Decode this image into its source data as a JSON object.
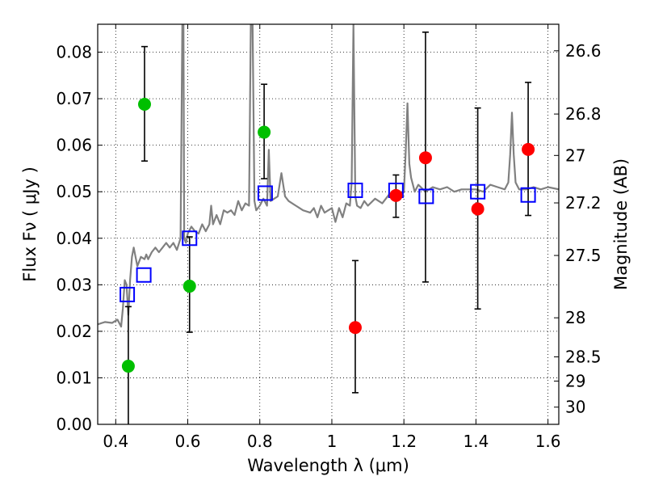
{
  "chart_data": {
    "type": "scatter",
    "title": "",
    "xlabel": "Wavelength  λ (μm)",
    "ylabel": "Flux  Fν  ( μJy )",
    "y2label": "Magnitude (AB)",
    "xlim": [
      0.35,
      1.63
    ],
    "ylim": [
      0.0,
      0.086
    ],
    "grid": true,
    "xticks": [
      0.4,
      0.6,
      0.8,
      1.0,
      1.2,
      1.4,
      1.6
    ],
    "xtick_labels": [
      "0.4",
      "0.6",
      "0.8",
      "1",
      "1.2",
      "1.4",
      "1.6"
    ],
    "yticks": [
      0.0,
      0.01,
      0.02,
      0.03,
      0.04,
      0.05,
      0.06,
      0.07,
      0.08
    ],
    "ytick_labels": [
      "0.00",
      "0.01",
      "0.02",
      "0.03",
      "0.04",
      "0.05",
      "0.06",
      "0.07",
      "0.08"
    ],
    "magnitude_ticks": [
      {
        "flux": 0.0803,
        "label": "26.6"
      },
      {
        "flux": 0.0667,
        "label": "26.8"
      },
      {
        "flux": 0.0578,
        "label": "27"
      },
      {
        "flux": 0.0476,
        "label": "27.2"
      },
      {
        "flux": 0.0363,
        "label": "27.5"
      },
      {
        "flux": 0.0229,
        "label": "28"
      },
      {
        "flux": 0.0145,
        "label": "28.5"
      },
      {
        "flux": 0.0093,
        "label": "29"
      },
      {
        "flux": 0.0037,
        "label": "30"
      }
    ],
    "series": [
      {
        "name": "model spectrum",
        "kind": "line",
        "color": "#808080",
        "x": [
          0.35,
          0.37,
          0.39,
          0.405,
          0.415,
          0.42,
          0.425,
          0.43,
          0.435,
          0.44,
          0.445,
          0.45,
          0.46,
          0.47,
          0.48,
          0.485,
          0.49,
          0.5,
          0.51,
          0.52,
          0.53,
          0.54,
          0.55,
          0.56,
          0.57,
          0.58,
          0.585,
          0.588,
          0.59,
          0.595,
          0.6,
          0.61,
          0.62,
          0.63,
          0.64,
          0.65,
          0.66,
          0.665,
          0.67,
          0.675,
          0.68,
          0.69,
          0.7,
          0.71,
          0.72,
          0.73,
          0.74,
          0.75,
          0.76,
          0.77,
          0.775,
          0.78,
          0.785,
          0.79,
          0.8,
          0.81,
          0.82,
          0.825,
          0.83,
          0.84,
          0.85,
          0.86,
          0.87,
          0.88,
          0.9,
          0.92,
          0.94,
          0.95,
          0.96,
          0.97,
          0.98,
          0.99,
          1.0,
          1.01,
          1.02,
          1.03,
          1.04,
          1.05,
          1.055,
          1.06,
          1.065,
          1.07,
          1.08,
          1.09,
          1.1,
          1.12,
          1.14,
          1.16,
          1.18,
          1.19,
          1.2,
          1.205,
          1.21,
          1.215,
          1.22,
          1.23,
          1.24,
          1.26,
          1.28,
          1.3,
          1.32,
          1.34,
          1.36,
          1.38,
          1.4,
          1.42,
          1.44,
          1.46,
          1.48,
          1.49,
          1.495,
          1.5,
          1.505,
          1.51,
          1.52,
          1.54,
          1.56,
          1.58,
          1.6,
          1.63
        ],
        "y": [
          0.0215,
          0.022,
          0.0218,
          0.0225,
          0.021,
          0.025,
          0.031,
          0.03,
          0.0235,
          0.031,
          0.036,
          0.038,
          0.034,
          0.036,
          0.0355,
          0.0365,
          0.0355,
          0.037,
          0.038,
          0.037,
          0.038,
          0.039,
          0.038,
          0.039,
          0.0375,
          0.04,
          0.086,
          0.086,
          0.04,
          0.039,
          0.041,
          0.0425,
          0.0415,
          0.041,
          0.043,
          0.0415,
          0.043,
          0.047,
          0.043,
          0.044,
          0.045,
          0.043,
          0.046,
          0.0455,
          0.046,
          0.045,
          0.048,
          0.046,
          0.0475,
          0.047,
          0.086,
          0.086,
          0.048,
          0.046,
          0.047,
          0.0485,
          0.047,
          0.059,
          0.048,
          0.0485,
          0.049,
          0.054,
          0.049,
          0.048,
          0.047,
          0.046,
          0.0455,
          0.0465,
          0.0445,
          0.047,
          0.0455,
          0.046,
          0.0465,
          0.0435,
          0.0465,
          0.0445,
          0.0475,
          0.047,
          0.052,
          0.086,
          0.049,
          0.047,
          0.0465,
          0.048,
          0.047,
          0.0485,
          0.0475,
          0.0495,
          0.049,
          0.0495,
          0.05,
          0.0585,
          0.069,
          0.056,
          0.053,
          0.05,
          0.0515,
          0.05,
          0.051,
          0.0505,
          0.051,
          0.05,
          0.0505,
          0.0505,
          0.0505,
          0.05,
          0.0515,
          0.051,
          0.0505,
          0.052,
          0.058,
          0.067,
          0.058,
          0.052,
          0.0505,
          0.0505,
          0.051,
          0.0505,
          0.051,
          0.0505
        ]
      },
      {
        "name": "model magnitudes",
        "kind": "open-square",
        "color": "#0000ff",
        "x": [
          0.432,
          0.478,
          0.605,
          0.815,
          1.065,
          1.178,
          1.262,
          1.405,
          1.545
        ],
        "y": [
          0.0279,
          0.0321,
          0.04,
          0.0497,
          0.0503,
          0.0503,
          0.049,
          0.05,
          0.0493
        ]
      },
      {
        "name": "optical detections",
        "kind": "filled-circle",
        "color": "#00bf00",
        "x": [
          0.435,
          0.48,
          0.605,
          0.812
        ],
        "y": [
          0.0125,
          0.0688,
          0.0297,
          0.0628
        ],
        "yerr_low": [
          null,
          0.0566,
          0.0198,
          0.0528
        ],
        "yerr_high": [
          null,
          0.0812,
          0.0403,
          0.0731
        ]
      },
      {
        "name": "near-IR detections",
        "kind": "filled-circle",
        "color": "#ff0000",
        "x": [
          1.065,
          1.178,
          1.26,
          1.405,
          1.545
        ],
        "y": [
          0.0208,
          0.0492,
          0.0573,
          0.0463,
          0.0591
        ],
        "yerr_low": [
          0.0068,
          0.0445,
          0.0306,
          0.0248,
          0.0449
        ],
        "yerr_high": [
          0.0352,
          0.0536,
          0.0843,
          0.068,
          0.0735
        ]
      },
      {
        "name": "upper limit",
        "kind": "errorbar-only",
        "color": "#000000",
        "x": [
          0.435
        ],
        "yerr_low": [
          0.0
        ],
        "yerr_high": [
          0.0253
        ]
      }
    ]
  }
}
